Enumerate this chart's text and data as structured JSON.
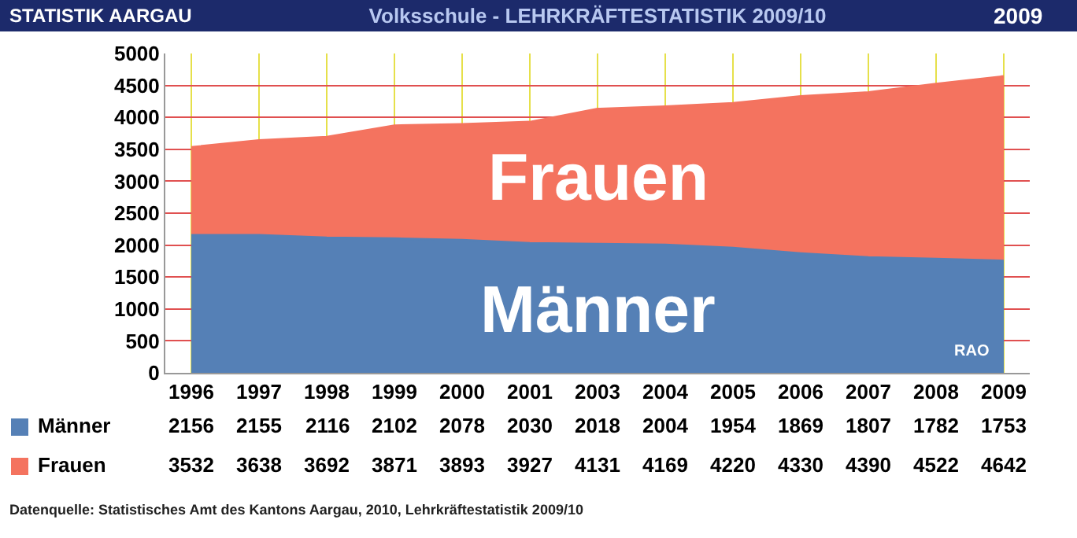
{
  "chart_data": {
    "type": "area",
    "title": "Volksschule - LEHRKRÄFTESTATISTIK 2009/10",
    "categories": [
      "1996",
      "1997",
      "1998",
      "1999",
      "2000",
      "2001",
      "2003",
      "2004",
      "2005",
      "2006",
      "2007",
      "2008",
      "2009"
    ],
    "series": [
      {
        "name": "Männer",
        "color": "#5580b6",
        "values": [
          2156,
          2155,
          2116,
          2102,
          2078,
          2030,
          2018,
          2004,
          1954,
          1869,
          1807,
          1782,
          1753
        ]
      },
      {
        "name": "Frauen",
        "color": "#f4735f",
        "values": [
          3532,
          3638,
          3692,
          3871,
          3893,
          3927,
          4131,
          4169,
          4220,
          4330,
          4390,
          4522,
          4642
        ]
      }
    ],
    "ylim": [
      0,
      5000
    ],
    "yticks": [
      0,
      500,
      1000,
      1500,
      2000,
      2500,
      3000,
      3500,
      4000,
      4500,
      5000
    ],
    "grid": true,
    "legend": "bottom left",
    "data_labels": true,
    "annotations": [
      "STATISTIK AARGAU",
      "2009",
      "RAO",
      "Datenquelle: Statistisches Amt des Kantons Aargau, 2010, Lehrkräftestatistik 2009/10"
    ]
  }
}
